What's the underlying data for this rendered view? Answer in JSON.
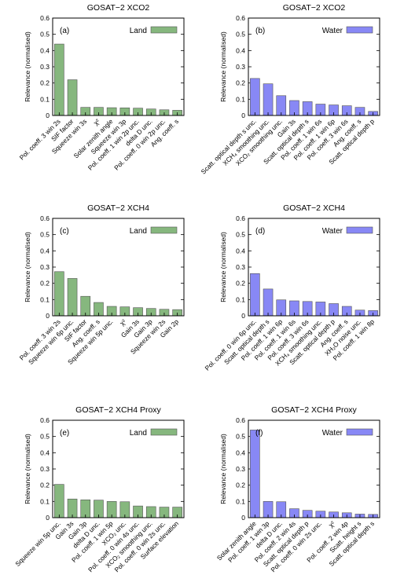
{
  "chart_data": [
    {
      "type": "bar",
      "panel": "(a)",
      "title": "GOSAT−2 XCO2",
      "ylabel": "Relevance (normalised)",
      "ylim": [
        0,
        0.6
      ],
      "yticks": [
        "0",
        "0.1",
        "0.2",
        "0.3",
        "0.4",
        "0.5",
        "0.6"
      ],
      "legend": "Land",
      "color": "#86b77e",
      "categories": [
        "Pol. coeff. 3 win 2s",
        "SIF factor",
        "Squeeze win 3s",
        "χ²",
        "Solar zenith angle",
        "Squeeze win 3p",
        "Pol. coeff. 1 win 2p unc.",
        "delta D unc.",
        "Pol. coeff. 0 win 2p unc.",
        "Ang. coeff. s"
      ],
      "values": [
        0.44,
        0.22,
        0.05,
        0.05,
        0.048,
        0.047,
        0.045,
        0.04,
        0.035,
        0.032
      ]
    },
    {
      "type": "bar",
      "panel": "(b)",
      "title": "GOSAT−2 XCO2",
      "ylabel": "Relevance (normalised)",
      "ylim": [
        0,
        0.6
      ],
      "yticks": [
        "0",
        "0.1",
        "0.2",
        "0.3",
        "0.4",
        "0.5",
        "0.6"
      ],
      "legend": "Water",
      "color": "#8888f5",
      "categories": [
        "Scatt. optical depth s unc.",
        "XCH₄ smoothing unc.",
        "XCO₂ smoothing unc.",
        "Gain 3s",
        "Scatt. optical depth s",
        "Pol. coeff. 1 win 6s",
        "Pol. coeff. 1 win 6p",
        "Pol. coeff. 3 win 6s",
        "Ang. coeff. s",
        "Scatt. optical depth p"
      ],
      "values": [
        0.228,
        0.195,
        0.122,
        0.092,
        0.085,
        0.07,
        0.065,
        0.06,
        0.05,
        0.025
      ]
    },
    {
      "type": "bar",
      "panel": "(c)",
      "title": "GOSAT−2 XCH4",
      "ylabel": "Relevance (normalised)",
      "ylim": [
        0,
        0.6
      ],
      "yticks": [
        "0",
        "0.1",
        "0.2",
        "0.3",
        "0.4",
        "0.5",
        "0.6"
      ],
      "legend": "Land",
      "color": "#86b77e",
      "categories": [
        "Pol. coeff. 3 win 2s",
        "Squeeze win 6p unc.",
        "SIF factor",
        "Ang. coeff. s",
        "Squeeze win 5p unc.",
        "χ²",
        "Gain 3s",
        "Gain 3p",
        "Squeeze win 2s",
        "Gain 2p"
      ],
      "values": [
        0.272,
        0.23,
        0.12,
        0.082,
        0.058,
        0.055,
        0.05,
        0.045,
        0.04,
        0.038
      ]
    },
    {
      "type": "bar",
      "panel": "(d)",
      "title": "GOSAT−2 XCH4",
      "ylabel": "Relevance (normalised)",
      "ylim": [
        0,
        0.6
      ],
      "yticks": [
        "0",
        "0.1",
        "0.2",
        "0.3",
        "0.4",
        "0.5",
        "0.6"
      ],
      "legend": "Water",
      "color": "#8888f5",
      "categories": [
        "Pol. coeff. 0 win 6p unc.",
        "Scatt. optical depth s",
        "Pol. coeff. 1 win 6p",
        "Pol. coeff. 1 win 6s",
        "Pol. coeff. 3 win 6s",
        "XCH₄ smoothing unc.",
        "Scatt. optical depth p",
        "Ang. coeff. s",
        "XH₂O noise unc.",
        "Pol. coeff. 1 win 8p"
      ],
      "values": [
        0.26,
        0.165,
        0.098,
        0.092,
        0.088,
        0.085,
        0.075,
        0.058,
        0.035,
        0.032
      ]
    },
    {
      "type": "bar",
      "panel": "(e)",
      "title": "GOSAT−2 XCH4 Proxy",
      "ylabel": "Relevance (normalised)",
      "ylim": [
        0,
        0.6
      ],
      "yticks": [
        "0",
        "0.1",
        "0.2",
        "0.3",
        "0.4",
        "0.5",
        "0.6"
      ],
      "legend": "Land",
      "color": "#86b77e",
      "categories": [
        "Squeeze win 5p unc.",
        "Gain 3s",
        "Gain 3p",
        "delta D unc.",
        "Pol. coeff. 1 win 5p",
        "XCO₂ unc.",
        "Pol. coeff. 0 win 4s unc.",
        "XCO₂ smoothing unc.",
        "Pol. coeff. 0 win 2s unc.",
        "Surface elevation"
      ],
      "values": [
        0.205,
        0.115,
        0.11,
        0.108,
        0.1,
        0.098,
        0.072,
        0.068,
        0.065,
        0.065
      ]
    },
    {
      "type": "bar",
      "panel": "(f)",
      "title": "GOSAT−2 XCH4 Proxy",
      "ylabel": "Relevance (normalised)",
      "ylim": [
        0,
        0.6
      ],
      "yticks": [
        "0",
        "0.1",
        "0.2",
        "0.3",
        "0.4",
        "0.5",
        "0.6"
      ],
      "legend": "Water",
      "color": "#8888f5",
      "categories": [
        "Solar zenith angle",
        "Pol. coeff. 1 win 3p",
        "delta D unc.",
        "Pol. coeff. 2 win 4s",
        "Scatt. optical depth p",
        "Pol. coeff. 0 win 2s unc.",
        "χ²",
        "Pol. coeff. 2 win 4p",
        "Scatt. height s",
        "Scatt. optical depth s"
      ],
      "values": [
        0.54,
        0.1,
        0.098,
        0.055,
        0.045,
        0.04,
        0.035,
        0.03,
        0.022,
        0.02
      ]
    }
  ]
}
